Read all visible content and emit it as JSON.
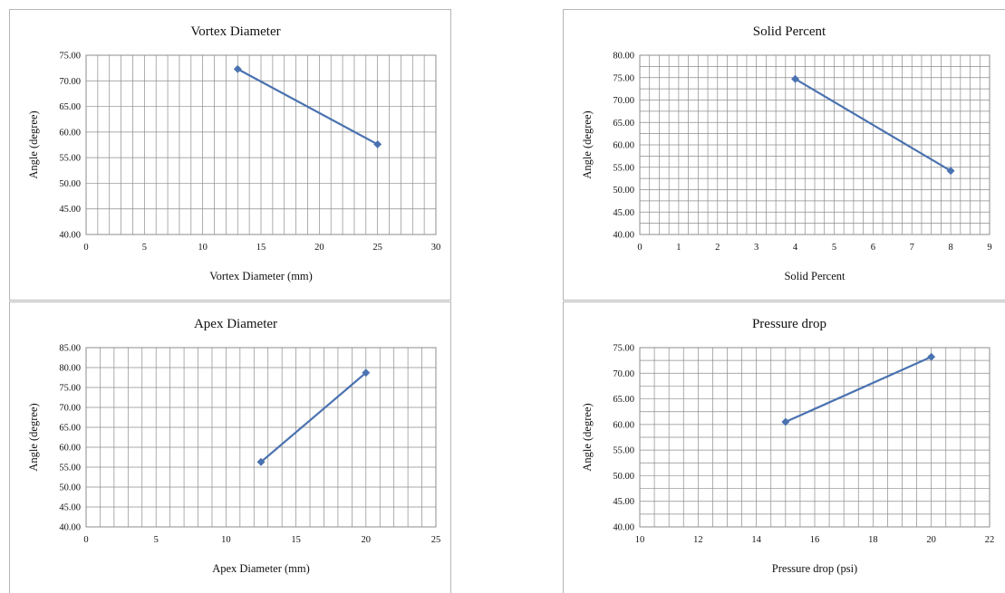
{
  "chart_data": [
    {
      "type": "line",
      "title": "Vortex Diameter",
      "xlabel": "Vortex Diameter (mm)",
      "ylabel": "Angle (degree)",
      "xlim": [
        0,
        30
      ],
      "ylim": [
        40,
        75
      ],
      "xticks": [
        0,
        5,
        10,
        15,
        20,
        25,
        30
      ],
      "xtick_labels": [
        "0",
        "5",
        "10",
        "15",
        "20",
        "25",
        "30"
      ],
      "yticks": [
        40,
        45,
        50,
        55,
        60,
        65,
        70,
        75
      ],
      "ytick_labels": [
        "40.00",
        "45.00",
        "50.00",
        "55.00",
        "60.00",
        "65.00",
        "70.00",
        "75.00"
      ],
      "x_minor_step": 1,
      "y_minor_step": 5,
      "grid": true,
      "color": "#4a72b0",
      "series": [
        {
          "x": [
            13,
            25
          ],
          "y": [
            72.3,
            57.6
          ]
        }
      ]
    },
    {
      "type": "line",
      "title": "Solid Percent",
      "xlabel": "Solid Percent",
      "ylabel": "Angle (degree)",
      "xlim": [
        0,
        9
      ],
      "ylim": [
        40,
        80
      ],
      "xticks": [
        0,
        1,
        2,
        3,
        4,
        5,
        6,
        7,
        8,
        9
      ],
      "xtick_labels": [
        "0",
        "1",
        "2",
        "3",
        "4",
        "5",
        "6",
        "7",
        "8",
        "9"
      ],
      "yticks": [
        40,
        45,
        50,
        55,
        60,
        65,
        70,
        75,
        80
      ],
      "ytick_labels": [
        "40.00",
        "45.00",
        "50.00",
        "55.00",
        "60.00",
        "65.00",
        "70.00",
        "75.00",
        "80.00"
      ],
      "x_minor_step": 0.25,
      "y_minor_step": 2.5,
      "grid": true,
      "color": "#4a72b0",
      "series": [
        {
          "x": [
            4,
            8
          ],
          "y": [
            74.7,
            54.2
          ]
        }
      ]
    },
    {
      "type": "line",
      "title": "Apex Diameter",
      "xlabel": "Apex Diameter (mm)",
      "ylabel": "Angle (degree)",
      "xlim": [
        0,
        25
      ],
      "ylim": [
        40,
        85
      ],
      "xticks": [
        0,
        5,
        10,
        15,
        20,
        25
      ],
      "xtick_labels": [
        "0",
        "5",
        "10",
        "15",
        "20",
        "25"
      ],
      "yticks": [
        40,
        45,
        50,
        55,
        60,
        65,
        70,
        75,
        80,
        85
      ],
      "ytick_labels": [
        "40.00",
        "45.00",
        "50.00",
        "55.00",
        "60.00",
        "65.00",
        "70.00",
        "75.00",
        "80.00",
        "85.00"
      ],
      "x_minor_step": 1,
      "y_minor_step": 5,
      "grid": true,
      "color": "#4a72b0",
      "series": [
        {
          "x": [
            12.5,
            20
          ],
          "y": [
            56.3,
            78.7
          ]
        }
      ]
    },
    {
      "type": "line",
      "title": "Pressure drop",
      "xlabel": "Pressure drop (psi)",
      "ylabel": "Angle (degree)",
      "xlim": [
        10,
        22
      ],
      "ylim": [
        40,
        75
      ],
      "xticks": [
        10,
        12,
        14,
        16,
        18,
        20,
        22
      ],
      "xtick_labels": [
        "10",
        "12",
        "14",
        "16",
        "18",
        "20",
        "22"
      ],
      "yticks": [
        40,
        45,
        50,
        55,
        60,
        65,
        70,
        75
      ],
      "ytick_labels": [
        "40.00",
        "45.00",
        "50.00",
        "55.00",
        "60.00",
        "65.00",
        "70.00",
        "75.00"
      ],
      "x_minor_step": 0.5,
      "y_minor_step": 2.5,
      "grid": true,
      "color": "#4a72b0",
      "series": [
        {
          "x": [
            15,
            20
          ],
          "y": [
            60.5,
            73.2
          ]
        }
      ]
    }
  ]
}
